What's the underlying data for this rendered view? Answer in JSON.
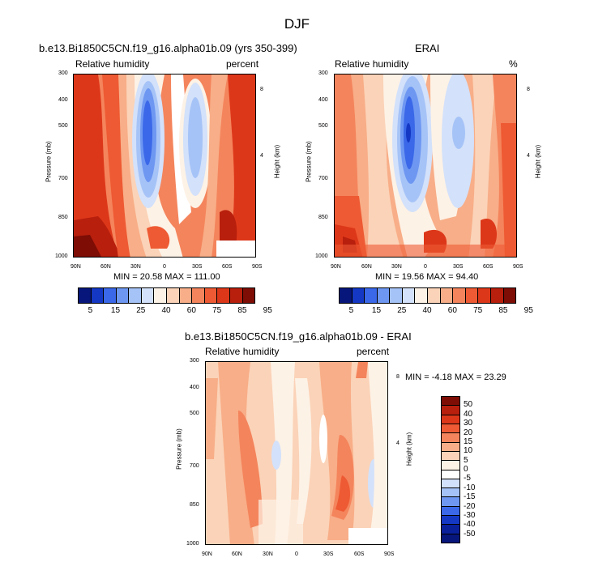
{
  "figure_title": "DJF",
  "chart_data": [
    {
      "type": "heatmap",
      "title": "b.e13.Bi1850C5CN.f19_g16.alpha01b.09 (yrs 350-399)",
      "left_label": "Relative humidity",
      "right_label": "percent",
      "ylabel": "Pressure (mb)",
      "y2label": "Height (km)",
      "x_ticks": [
        "90N",
        "60N",
        "30N",
        "0",
        "30S",
        "60S",
        "90S"
      ],
      "y_ticks": [
        "300",
        "400",
        "500",
        "700",
        "850",
        "1000"
      ],
      "y2_ticks": [
        "8",
        "4"
      ],
      "minmax_text": "MIN = 20.58   MAX = 111.00",
      "min": 20.58,
      "max": 111.0
    },
    {
      "type": "heatmap",
      "title": "ERAI",
      "left_label": "Relative humidity",
      "right_label": "%",
      "ylabel": "Pressure (mb)",
      "y2label": "Height (km)",
      "x_ticks": [
        "90N",
        "60N",
        "30N",
        "0",
        "30S",
        "60S",
        "90S"
      ],
      "y_ticks": [
        "300",
        "400",
        "500",
        "700",
        "850",
        "1000"
      ],
      "y2_ticks": [
        "8",
        "4"
      ],
      "minmax_text": "MIN = 19.56   MAX = 94.40",
      "min": 19.56,
      "max": 94.4
    },
    {
      "type": "heatmap",
      "title": "b.e13.Bi1850C5CN.f19_g16.alpha01b.09 - ERAI",
      "left_label": "Relative humidity",
      "right_label": "percent",
      "ylabel": "Pressure (mb)",
      "y2label": "Height (km)",
      "x_ticks": [
        "90N",
        "60N",
        "30N",
        "0",
        "30S",
        "60S",
        "90S"
      ],
      "y_ticks": [
        "300",
        "400",
        "500",
        "700",
        "850",
        "1000"
      ],
      "y2_ticks": [
        "8",
        "4"
      ],
      "minmax_text": "MIN =  -4.18   MAX =  23.29",
      "min": -4.18,
      "max": 23.29
    }
  ],
  "colorbar_abs": {
    "labels": [
      "5",
      "15",
      "25",
      "40",
      "60",
      "75",
      "85",
      "95"
    ],
    "colors": [
      "#06167a",
      "#1538c4",
      "#3a68e8",
      "#6e97f2",
      "#a6c3f7",
      "#d3e1fa",
      "#fdf2e6",
      "#fbd3b8",
      "#f8ae88",
      "#f4845c",
      "#ee5a33",
      "#dd3719",
      "#b81f0d",
      "#7d0d05"
    ]
  },
  "colorbar_diff": {
    "labels": [
      "50",
      "40",
      "30",
      "20",
      "15",
      "10",
      "5",
      "0",
      "-5",
      "-10",
      "-15",
      "-20",
      "-30",
      "-40",
      "-50"
    ],
    "colors": [
      "#7d0d05",
      "#b81f0d",
      "#dd3719",
      "#ee5a33",
      "#f4845c",
      "#f8ae88",
      "#fbd3b8",
      "#fdf2e6",
      "#ffffff",
      "#d3e1fa",
      "#a6c3f7",
      "#6e97f2",
      "#3a68e8",
      "#1538c4",
      "#0a1f9a",
      "#06167a"
    ]
  }
}
